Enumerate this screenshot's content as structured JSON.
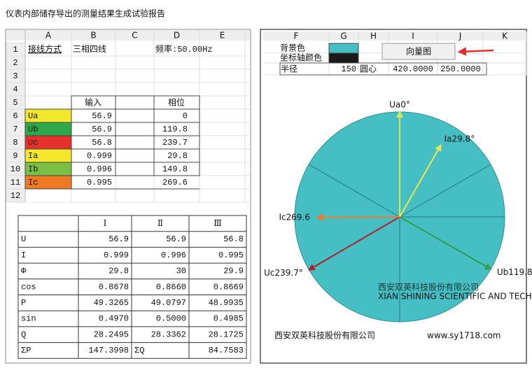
{
  "title": "仪表内部储存导出的测量结果生成试验报告",
  "left_sheet": {
    "columns": [
      "A",
      "B",
      "C",
      "D",
      "E"
    ],
    "row_numbers": [
      1,
      2,
      3,
      4,
      5,
      6,
      7,
      8,
      9,
      10,
      11,
      12
    ],
    "wiring_label": "接线方式",
    "wiring": "三相四线",
    "frequency": "频率:50.00Hz",
    "input_header": "输入",
    "phase_header": "相位",
    "rows": [
      {
        "name": "Ua",
        "color": "#f3e82c",
        "input": 56.9,
        "phase": 0,
        "vector_label": "Ua0°",
        "vector_color": "#d8e65a"
      },
      {
        "name": "Ub",
        "color": "#2ea84a",
        "input": 56.9,
        "phase": 119.8,
        "vector_label": "Ub119.8°",
        "vector_color": "#2e9e4f"
      },
      {
        "name": "Uc",
        "color": "#e5312b",
        "input": 56.8,
        "phase": 239.7,
        "vector_label": "Uc239.7°",
        "vector_color": "#b3202a"
      },
      {
        "name": "Ia",
        "color": "#f3e82c",
        "input": 0.999,
        "phase": 29.8,
        "vector_label": "Ia29.8°",
        "vector_color": "#ece54a"
      },
      {
        "name": "Ib",
        "color": "#7bbf45",
        "input": 0.996,
        "phase": 149.8
      },
      {
        "name": "Ic",
        "color": "#ee7a24",
        "input": 0.995,
        "phase": 269.6,
        "vector_label": "Ic269.6",
        "vector_color": "#f07a2a"
      }
    ]
  },
  "result_table": {
    "headers": [
      "Ⅰ",
      "Ⅱ",
      "Ⅲ"
    ],
    "rows": [
      {
        "label": "U",
        "values": [
          "56.9",
          "56.9",
          "56.8"
        ]
      },
      {
        "label": "I",
        "values": [
          "0.999",
          "0.996",
          "0.995"
        ]
      },
      {
        "label": "Φ",
        "values": [
          "29.8",
          "30",
          "29.9"
        ]
      },
      {
        "label": "cos",
        "values": [
          "0.8678",
          "0.8660",
          "0.8669"
        ]
      },
      {
        "label": "P",
        "values": [
          "49.3265",
          "49.0797",
          "48.9935"
        ]
      },
      {
        "label": "sin",
        "values": [
          "0.4970",
          "0.5000",
          "0.4985"
        ]
      },
      {
        "label": "Q",
        "values": [
          "28.2495",
          "28.3362",
          "28.1725"
        ]
      }
    ],
    "sum": {
      "p_label": "ΣP",
      "p_value": "147.3998",
      "q_label": "ΣQ",
      "q_value": "84.7583"
    }
  },
  "right_sheet": {
    "columns": [
      "F",
      "G",
      "H",
      "I",
      "J",
      "K"
    ],
    "background_label": "背景色",
    "background_color": "#45bfc3",
    "axis_label": "坐标轴颜色",
    "axis_color": "#1a1a1a",
    "radius_label": "半径",
    "radius": 150,
    "center_label": "圆心",
    "center": [
      "420.0000",
      "250.0000"
    ],
    "button": "向量图"
  },
  "watermark": {
    "name": "西安双英科技股份有限公司",
    "english": "XIAN SHINING SCIENTIFIC AND TECHNOLOGY CO., LTD"
  },
  "footer": {
    "company": "西安双英科技股份有限公司",
    "website": "www.sy1718.com"
  }
}
